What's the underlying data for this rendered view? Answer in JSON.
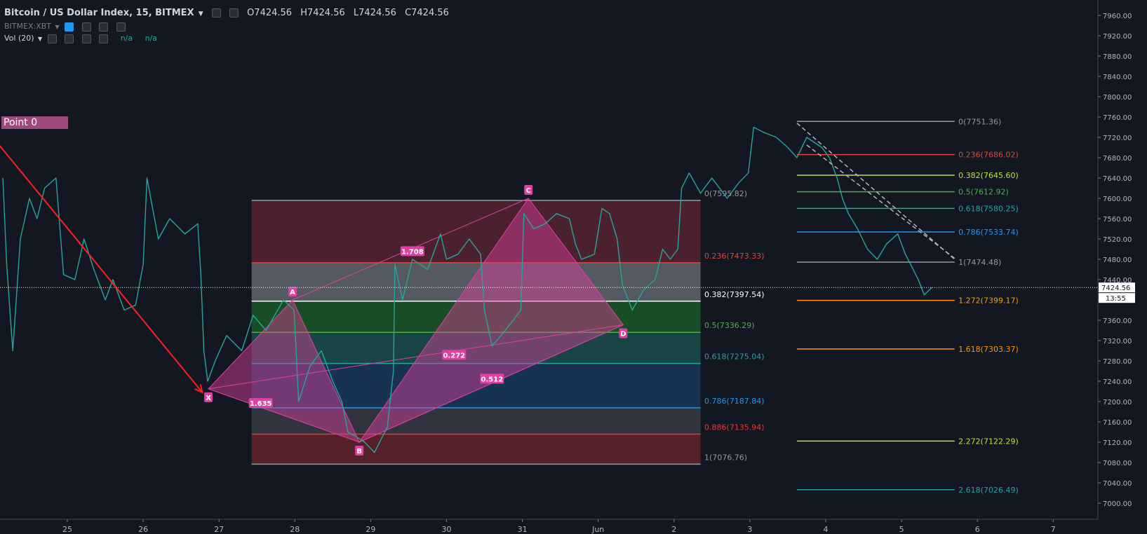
{
  "header": {
    "title": "Bitcoin / US Dollar Index, 15, BITMEX",
    "ohlc": {
      "o": "O7424.56",
      "h": "H7424.56",
      "l": "L7424.56",
      "c": "C7424.56"
    },
    "sub_symbol": "BITMEX:XBT",
    "volume_label": "Vol (20)",
    "volume_values": [
      "n/a",
      "n/a"
    ]
  },
  "point_label": "Point 0",
  "chart_data": {
    "type": "line",
    "y_ticks": [
      7960,
      7920,
      7880,
      7840,
      7800,
      7760,
      7720,
      7680,
      7640,
      7600,
      7560,
      7520,
      7480,
      7440,
      7400,
      7360,
      7320,
      7280,
      7240,
      7200,
      7160,
      7120,
      7080,
      7040,
      7000
    ],
    "ylim": [
      6976,
      7968
    ],
    "x_ticks": [
      {
        "label": "25",
        "d": 0
      },
      {
        "label": "26",
        "d": 1
      },
      {
        "label": "27",
        "d": 2
      },
      {
        "label": "28",
        "d": 3
      },
      {
        "label": "29",
        "d": 4
      },
      {
        "label": "30",
        "d": 5
      },
      {
        "label": "31",
        "d": 6
      },
      {
        "label": "Jun",
        "d": 7
      },
      {
        "label": "2",
        "d": 8
      },
      {
        "label": "3",
        "d": 9
      },
      {
        "label": "4",
        "d": 10
      },
      {
        "label": "5",
        "d": 11
      },
      {
        "label": "6",
        "d": 12
      },
      {
        "label": "7",
        "d": 13
      }
    ],
    "last_price_label": "7424.56",
    "countdown_label": "13:55",
    "last_price": 7424.56,
    "price_path": [
      [
        -0.85,
        7640
      ],
      [
        -0.8,
        7470
      ],
      [
        -0.72,
        7300
      ],
      [
        -0.62,
        7520
      ],
      [
        -0.5,
        7600
      ],
      [
        -0.4,
        7560
      ],
      [
        -0.3,
        7620
      ],
      [
        -0.15,
        7640
      ],
      [
        -0.05,
        7450
      ],
      [
        0.1,
        7440
      ],
      [
        0.22,
        7520
      ],
      [
        0.35,
        7460
      ],
      [
        0.5,
        7400
      ],
      [
        0.6,
        7440
      ],
      [
        0.75,
        7380
      ],
      [
        0.9,
        7390
      ],
      [
        1.0,
        7470
      ],
      [
        1.05,
        7640
      ],
      [
        1.2,
        7520
      ],
      [
        1.35,
        7560
      ],
      [
        1.55,
        7530
      ],
      [
        1.72,
        7550
      ],
      [
        1.76,
        7450
      ],
      [
        1.8,
        7300
      ],
      [
        1.85,
        7240
      ],
      [
        1.95,
        7280
      ],
      [
        2.1,
        7330
      ],
      [
        2.3,
        7300
      ],
      [
        2.45,
        7370
      ],
      [
        2.62,
        7340
      ],
      [
        2.85,
        7400
      ],
      [
        2.99,
        7380
      ],
      [
        3.05,
        7200
      ],
      [
        3.2,
        7270
      ],
      [
        3.35,
        7300
      ],
      [
        3.5,
        7240
      ],
      [
        3.62,
        7200
      ],
      [
        3.7,
        7140
      ],
      [
        3.82,
        7130
      ],
      [
        3.92,
        7120
      ],
      [
        4.05,
        7100
      ],
      [
        4.22,
        7150
      ],
      [
        4.3,
        7260
      ],
      [
        4.32,
        7470
      ],
      [
        4.42,
        7400
      ],
      [
        4.55,
        7480
      ],
      [
        4.75,
        7460
      ],
      [
        4.92,
        7530
      ],
      [
        5.0,
        7480
      ],
      [
        5.15,
        7490
      ],
      [
        5.3,
        7520
      ],
      [
        5.45,
        7490
      ],
      [
        5.5,
        7380
      ],
      [
        5.6,
        7310
      ],
      [
        5.72,
        7330
      ],
      [
        5.88,
        7360
      ],
      [
        5.98,
        7380
      ],
      [
        6.02,
        7570
      ],
      [
        6.15,
        7540
      ],
      [
        6.3,
        7550
      ],
      [
        6.45,
        7570
      ],
      [
        6.62,
        7560
      ],
      [
        6.7,
        7510
      ],
      [
        6.78,
        7480
      ],
      [
        6.95,
        7490
      ],
      [
        7.05,
        7580
      ],
      [
        7.15,
        7570
      ],
      [
        7.25,
        7520
      ],
      [
        7.32,
        7430
      ],
      [
        7.45,
        7380
      ],
      [
        7.6,
        7420
      ],
      [
        7.75,
        7440
      ],
      [
        7.85,
        7500
      ],
      [
        7.95,
        7480
      ],
      [
        8.05,
        7500
      ],
      [
        8.1,
        7620
      ],
      [
        8.2,
        7650
      ],
      [
        8.35,
        7610
      ],
      [
        8.5,
        7640
      ],
      [
        8.7,
        7600
      ],
      [
        8.85,
        7630
      ],
      [
        8.98,
        7650
      ],
      [
        9.05,
        7740
      ],
      [
        9.18,
        7730
      ],
      [
        9.35,
        7720
      ],
      [
        9.5,
        7700
      ],
      [
        9.62,
        7680
      ],
      [
        9.75,
        7720
      ],
      [
        9.95,
        7700
      ],
      [
        10.05,
        7680
      ],
      [
        10.15,
        7640
      ],
      [
        10.22,
        7600
      ],
      [
        10.3,
        7570
      ],
      [
        10.42,
        7540
      ],
      [
        10.55,
        7500
      ],
      [
        10.68,
        7480
      ],
      [
        10.8,
        7510
      ],
      [
        10.95,
        7530
      ],
      [
        11.05,
        7490
      ],
      [
        11.12,
        7470
      ],
      [
        11.22,
        7440
      ],
      [
        11.3,
        7410
      ],
      [
        11.4,
        7424.56
      ]
    ],
    "bat_pattern": {
      "points": [
        {
          "label": "X",
          "d": 1.86,
          "p": 7225
        },
        {
          "label": "A",
          "d": 2.97,
          "p": 7400
        },
        {
          "label": "B",
          "d": 3.85,
          "p": 7120
        },
        {
          "label": "C",
          "d": 6.08,
          "p": 7600
        },
        {
          "label": "D",
          "d": 7.33,
          "p": 7351
        }
      ],
      "ratios": [
        {
          "label": "1.635",
          "d": 2.55,
          "p": 7197
        },
        {
          "label": "1.708",
          "d": 4.55,
          "p": 7496
        },
        {
          "label": "0.272",
          "d": 5.1,
          "p": 7292
        },
        {
          "label": "0.512",
          "d": 5.6,
          "p": 7245
        }
      ]
    },
    "trend_arrow": {
      "from": {
        "d": -0.9,
        "p": 7705
      },
      "to": {
        "d": 1.78,
        "p": 7218
      }
    },
    "fib_retracement": {
      "d_start": 2.43,
      "d_end": 8.35,
      "label_d": 8.4,
      "levels": [
        {
          "label": "0(7595.82)",
          "p": 7595.82,
          "color": "#9598a1",
          "fill": "#7a2a3a"
        },
        {
          "label": "0.236(7473.33)",
          "p": 7473.33,
          "color": "#e0443e",
          "fill": "#8d8f95"
        },
        {
          "label": "0.382(7397.54)",
          "p": 7397.54,
          "color": "#ffffff",
          "fill": "#1f7a2a"
        },
        {
          "label": "0.5(7336.29)",
          "p": 7336.29,
          "color": "#4caf50",
          "fill": "#1f6e60"
        },
        {
          "label": "0.618(7275.04)",
          "p": 7275.04,
          "color": "#26a69a",
          "fill": "#1e4a7a"
        },
        {
          "label": "0.786(7187.84)",
          "p": 7187.84,
          "color": "#2196f3",
          "fill": "#4a4d57"
        },
        {
          "label": "0.886(7135.94)",
          "p": 7135.94,
          "color": "#e53935",
          "fill": "#8a2a30"
        },
        {
          "label": "1(7076.76)",
          "p": 7076.76,
          "color": "#9598a1",
          "fill": ""
        }
      ]
    },
    "fib_extension": {
      "d_start": 9.62,
      "d_end": 11.7,
      "label_d": 11.75,
      "levels": [
        {
          "label": "0(7751.36)",
          "p": 7751.36,
          "color": "#9598a1"
        },
        {
          "label": "0.236(7686.02)",
          "p": 7686.02,
          "color": "#e0443e"
        },
        {
          "label": "0.382(7645.60)",
          "p": 7645.6,
          "color": "#cddc39"
        },
        {
          "label": "0.5(7612.92)",
          "p": 7612.92,
          "color": "#4caf50"
        },
        {
          "label": "0.618(7580.25)",
          "p": 7580.25,
          "color": "#26a69a"
        },
        {
          "label": "0.786(7533.74)",
          "p": 7533.74,
          "color": "#2196f3"
        },
        {
          "label": "1(7474.48)",
          "p": 7474.48,
          "color": "#9598a1"
        },
        {
          "label": "1.272(7399.17)",
          "p": 7399.17,
          "color": "#ff9800"
        },
        {
          "label": "1.618(7303.37)",
          "p": 7303.37,
          "color": "#ff9800"
        },
        {
          "label": "2.272(7122.29)",
          "p": 7122.29,
          "color": "#cddc39"
        },
        {
          "label": "2.618(7026.49)",
          "p": 7026.49,
          "color": "#26a69a"
        }
      ]
    },
    "dashed_trend": [
      {
        "from": {
          "d": 9.62,
          "p": 7748
        },
        "to": {
          "d": 11.7,
          "p": 7480
        }
      },
      {
        "from": {
          "d": 9.75,
          "p": 7705
        },
        "to": {
          "d": 11.7,
          "p": 7482
        }
      }
    ]
  }
}
